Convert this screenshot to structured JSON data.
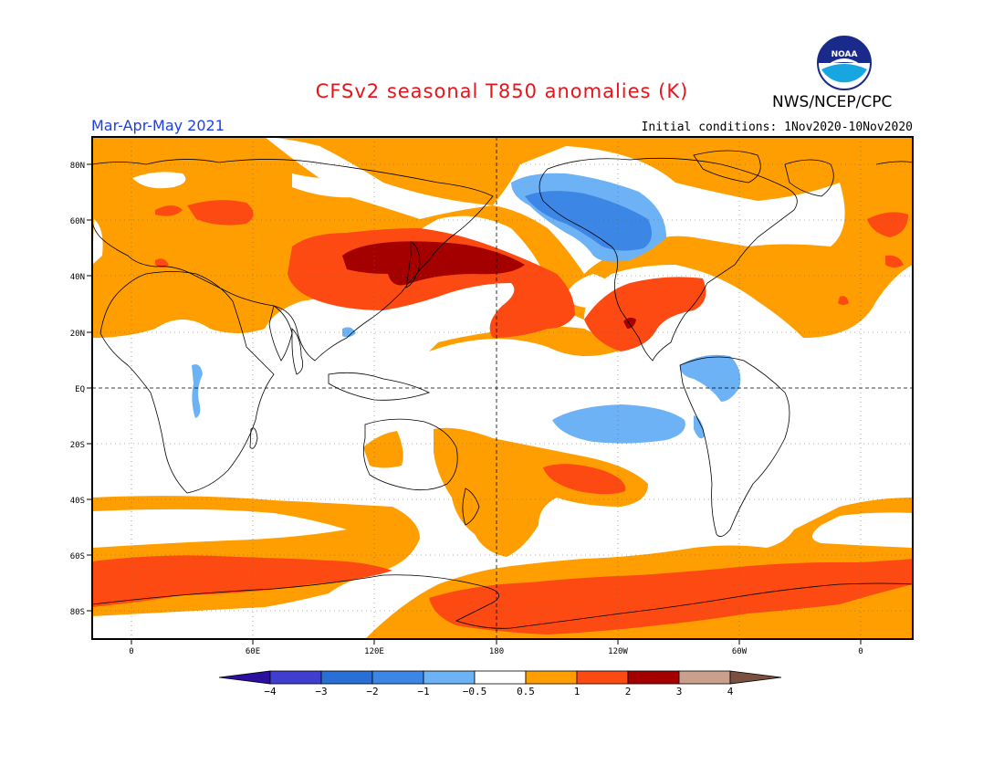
{
  "title": "CFSv2 seasonal T850 anomalies (K)",
  "organization": "NWS/NCEP/CPC",
  "period": "Mar-Apr-May 2021",
  "initial_conditions": "Initial conditions: 1Nov2020-10Nov2020",
  "logo_text": "NOAA",
  "colors": {
    "title": "#e8141c",
    "period": "#1e3fe0",
    "pos_weak": "#ff9e00",
    "pos_mod": "#fc4a12",
    "pos_strong": "#a50000",
    "neg_weak": "#6db2f5",
    "neg_mod": "#3c86e5",
    "coast": "#000000"
  },
  "lat_labels": [
    "80N",
    "60N",
    "40N",
    "20N",
    "EQ",
    "20S",
    "40S",
    "60S",
    "80S"
  ],
  "lon_labels": [
    "0",
    "60E",
    "120E",
    "180",
    "120W",
    "60W",
    "0"
  ],
  "colorbar": {
    "ticks": [
      "−4",
      "−3",
      "−2",
      "−1",
      "−0.5",
      "0.5",
      "1",
      "2",
      "3",
      "4"
    ],
    "colors": [
      "#2b0f9e",
      "#3f3fcf",
      "#2a6fd6",
      "#3c86e5",
      "#6db2f5",
      "#ffffff",
      "#ff9e00",
      "#fc4a12",
      "#a50000",
      "#c8a08c",
      "#7a5040"
    ]
  }
}
